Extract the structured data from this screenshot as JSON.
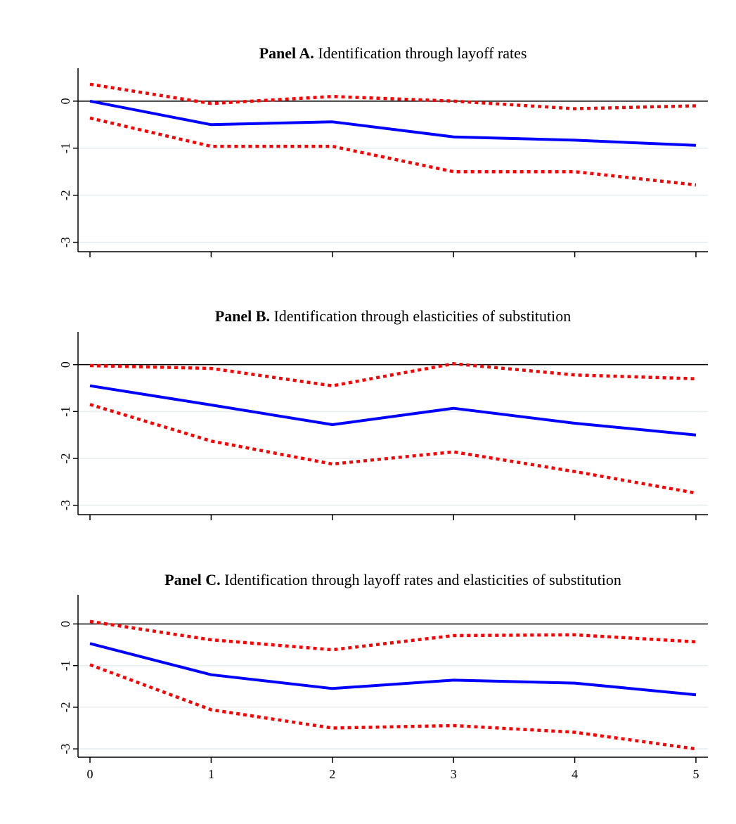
{
  "chart_data": [
    {
      "type": "line",
      "panel": "A",
      "title_bold": "Panel A.",
      "title_rest": " Identification through layoff rates",
      "x": [
        0,
        1,
        2,
        3,
        4,
        5
      ],
      "xlim": [
        0,
        5
      ],
      "ylim": [
        -3.2,
        0.7
      ],
      "yticks": [
        0,
        -1,
        -2,
        -3
      ],
      "show_x_tick_labels": false,
      "reference_line": 0,
      "series": [
        {
          "role": "estimate",
          "color": "#0000ff",
          "style": "solid",
          "values": [
            0,
            -0.5,
            -0.44,
            -0.76,
            -0.83,
            -0.94
          ]
        },
        {
          "role": "upper",
          "color": "#ff0000",
          "style": "dotted",
          "values": [
            0.36,
            -0.05,
            0.1,
            0.0,
            -0.16,
            -0.1
          ]
        },
        {
          "role": "lower",
          "color": "#ff0000",
          "style": "dotted",
          "values": [
            -0.36,
            -0.96,
            -0.96,
            -1.5,
            -1.5,
            -1.78
          ]
        }
      ]
    },
    {
      "type": "line",
      "panel": "B",
      "title_bold": "Panel B.",
      "title_rest": " Identification through elasticities of substitution",
      "x": [
        0,
        1,
        2,
        3,
        4,
        5
      ],
      "xlim": [
        0,
        5
      ],
      "ylim": [
        -3.2,
        0.7
      ],
      "yticks": [
        0,
        -1,
        -2,
        -3
      ],
      "show_x_tick_labels": false,
      "reference_line": 0,
      "series": [
        {
          "role": "estimate",
          "color": "#0000ff",
          "style": "solid",
          "values": [
            -0.45,
            -0.86,
            -1.28,
            -0.93,
            -1.25,
            -1.5
          ]
        },
        {
          "role": "upper",
          "color": "#ff0000",
          "style": "dotted",
          "values": [
            -0.02,
            -0.08,
            -0.45,
            0.02,
            -0.22,
            -0.3
          ]
        },
        {
          "role": "lower",
          "color": "#ff0000",
          "style": "dotted",
          "values": [
            -0.85,
            -1.63,
            -2.12,
            -1.86,
            -2.28,
            -2.74
          ]
        }
      ]
    },
    {
      "type": "line",
      "panel": "C",
      "title_bold": "Panel C.",
      "title_rest": " Identification through layoff rates and elasticities of substitution",
      "x": [
        0,
        1,
        2,
        3,
        4,
        5
      ],
      "xlim": [
        0,
        5
      ],
      "ylim": [
        -3.2,
        0.7
      ],
      "yticks": [
        0,
        -1,
        -2,
        -3
      ],
      "xticks": [
        0,
        1,
        2,
        3,
        4,
        5
      ],
      "show_x_tick_labels": true,
      "reference_line": 0,
      "series": [
        {
          "role": "estimate",
          "color": "#0000ff",
          "style": "solid",
          "values": [
            -0.47,
            -1.22,
            -1.55,
            -1.35,
            -1.42,
            -1.7
          ]
        },
        {
          "role": "upper",
          "color": "#ff0000",
          "style": "dotted",
          "values": [
            0.06,
            -0.38,
            -0.62,
            -0.28,
            -0.26,
            -0.43
          ]
        },
        {
          "role": "lower",
          "color": "#ff0000",
          "style": "dotted",
          "values": [
            -0.98,
            -2.06,
            -2.5,
            -2.44,
            -2.6,
            -3.0
          ]
        }
      ]
    }
  ]
}
